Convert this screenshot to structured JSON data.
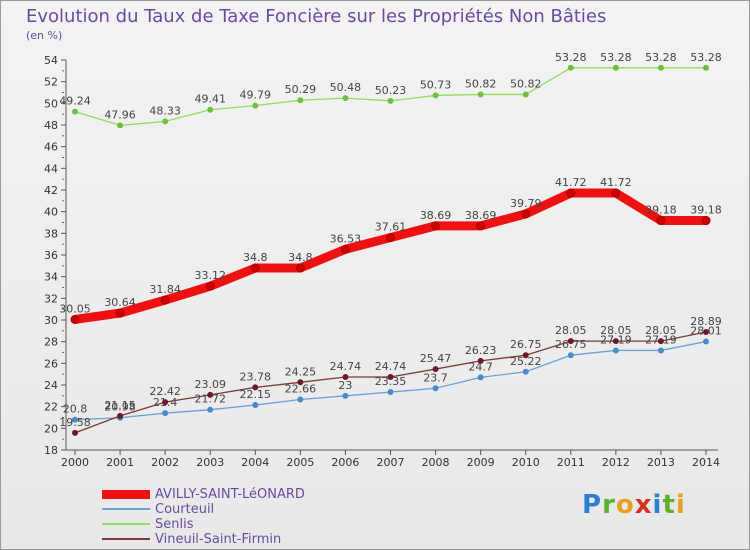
{
  "title": "Evolution du Taux de Taxe Foncière sur les Propriétés Non Bâties",
  "subtitle": "(en %)",
  "logo": {
    "text": "Proxiti",
    "colors": [
      "#2a7fd4",
      "#5db030",
      "#e8a020",
      "#d43020",
      "#2a7fd4",
      "#5db030",
      "#e8a020"
    ]
  },
  "chart_data": {
    "type": "line",
    "title": "Evolution du Taux de Taxe Foncière sur les Propriétés Non Bâties",
    "ylabel": "(en %)",
    "xlabel": "",
    "ylim": [
      18,
      54
    ],
    "yticks": [
      18,
      20,
      22,
      24,
      26,
      28,
      30,
      32,
      34,
      36,
      38,
      40,
      42,
      44,
      46,
      48,
      50,
      52,
      54
    ],
    "grid": false,
    "legend": "bottom-left",
    "x": [
      "2000",
      "2001",
      "2002",
      "2003",
      "2004",
      "2005",
      "2006",
      "2007",
      "2008",
      "2009",
      "2010",
      "2011",
      "2012",
      "2013",
      "2014"
    ],
    "series": [
      {
        "name": "AVILLY-SAINT-LéONARD",
        "color": "#ee1111",
        "marker": "#cc0000",
        "values": [
          30.05,
          30.64,
          31.84,
          33.12,
          34.8,
          34.8,
          36.53,
          37.61,
          38.69,
          38.69,
          39.79,
          41.72,
          41.72,
          39.18,
          39.18
        ]
      },
      {
        "name": "Courteuil",
        "color": "#6aa2d6",
        "marker": "#4a8ac8",
        "values": [
          20.8,
          20.98,
          21.4,
          21.72,
          22.15,
          22.66,
          23,
          23.35,
          23.7,
          24.7,
          25.22,
          26.75,
          27.19,
          27.19,
          28.01
        ]
      },
      {
        "name": "Senlis",
        "color": "#90dd60",
        "marker": "#6ec040",
        "values": [
          49.24,
          47.96,
          48.33,
          49.41,
          49.79,
          50.29,
          50.48,
          50.23,
          50.73,
          50.82,
          50.82,
          53.28,
          53.28,
          53.28,
          53.28
        ]
      },
      {
        "name": "Vineuil-Saint-Firmin",
        "color": "#7a3a3a",
        "marker": "#6a1a2a",
        "values": [
          19.58,
          21.15,
          22.42,
          23.09,
          23.78,
          24.25,
          24.74,
          24.74,
          25.47,
          26.23,
          26.75,
          28.05,
          28.05,
          28.05,
          28.89
        ]
      }
    ]
  }
}
